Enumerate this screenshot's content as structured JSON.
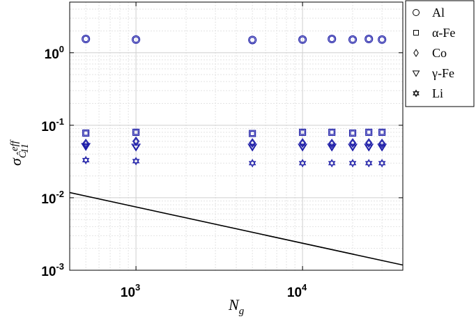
{
  "chart_data": {
    "type": "scatter",
    "x_scale": "log",
    "y_scale": "log",
    "xlim": [
      400,
      40000
    ],
    "ylim": [
      0.001,
      5
    ],
    "grid": true,
    "legend_position": "outside-top-right",
    "xlabel": {
      "main": "N",
      "sub": "g"
    },
    "ylabel": {
      "main": "σ",
      "sub": "Ĉ",
      "sub_sup": "eff",
      "sub_sub": "11"
    },
    "x_ticks": [
      {
        "value": 1000,
        "base": "10",
        "exp": "3"
      },
      {
        "value": 10000,
        "base": "10",
        "exp": "4"
      }
    ],
    "y_ticks": [
      {
        "value": 0.001,
        "base": "10",
        "exp": "-3"
      },
      {
        "value": 0.01,
        "base": "10",
        "exp": "-2"
      },
      {
        "value": 0.1,
        "base": "10",
        "exp": "-1"
      },
      {
        "value": 1,
        "base": "10",
        "exp": "0"
      }
    ],
    "marker_color": "#1a1aa6",
    "x": [
      500,
      1000,
      5000,
      10000,
      15000,
      20000,
      25000,
      30000
    ],
    "series": [
      {
        "name": "Al",
        "marker": "circle",
        "values": [
          1.55,
          1.52,
          1.5,
          1.52,
          1.55,
          1.52,
          1.55,
          1.52
        ]
      },
      {
        "name": "α-Fe",
        "marker": "square",
        "values": [
          0.078,
          0.08,
          0.077,
          0.08,
          0.08,
          0.078,
          0.08,
          0.08
        ]
      },
      {
        "name": "Co",
        "marker": "diamond",
        "values": [
          0.056,
          0.06,
          0.057,
          0.057,
          0.056,
          0.057,
          0.057,
          0.056
        ]
      },
      {
        "name": "γ-Fe",
        "marker": "triangle-down",
        "values": [
          0.051,
          0.05,
          0.05,
          0.05,
          0.05,
          0.05,
          0.05,
          0.05
        ]
      },
      {
        "name": "Li",
        "marker": "hexagram",
        "values": [
          0.033,
          0.032,
          0.03,
          0.03,
          0.03,
          0.03,
          0.03,
          0.03
        ]
      }
    ],
    "reference_line": {
      "x": [
        400,
        40000
      ],
      "y": [
        0.0118,
        0.00118
      ],
      "color": "#000000"
    }
  }
}
